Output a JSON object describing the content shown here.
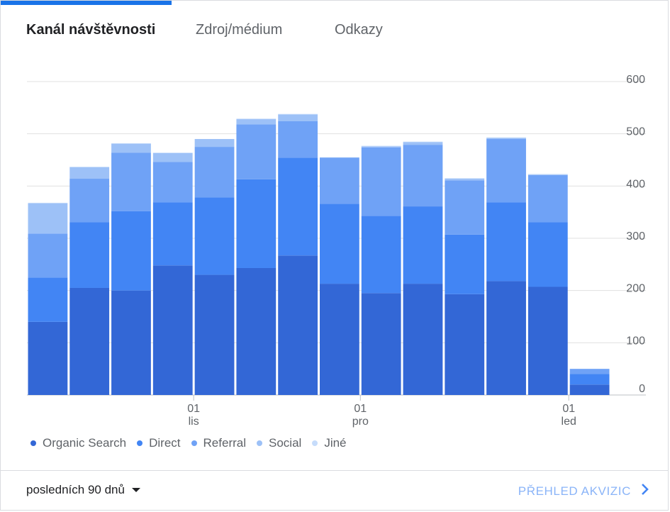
{
  "tabs": [
    {
      "label": "Kanál návštěvnosti"
    },
    {
      "label": "Zdroj/médium"
    },
    {
      "label": "Odkazy"
    }
  ],
  "legend": [
    {
      "label": "Organic Search",
      "color": "#3367d6"
    },
    {
      "label": "Direct",
      "color": "#4285f4"
    },
    {
      "label": "Referral",
      "color": "#6fa2f6"
    },
    {
      "label": "Social",
      "color": "#9dc1f7"
    },
    {
      "label": "Jiné",
      "color": "#c6dcfb"
    }
  ],
  "footer": {
    "date_range": "posledních 90 dnů",
    "acquisition_link": "PŘEHLED AKVIZIC"
  },
  "chart_data": {
    "type": "bar",
    "stacked": true,
    "ylim": [
      0,
      600
    ],
    "yticks": [
      0,
      100,
      200,
      300,
      400,
      500,
      600
    ],
    "x_ticks": [
      {
        "day": "01",
        "month": "lis",
        "after_bar": 4
      },
      {
        "day": "01",
        "month": "pro",
        "after_bar": 8
      },
      {
        "day": "01",
        "month": "led",
        "after_bar": 13
      }
    ],
    "series": [
      {
        "name": "Organic Search",
        "values": [
          140,
          205,
          200,
          248,
          230,
          243,
          267,
          213,
          195,
          213,
          193,
          218,
          207,
          20
        ]
      },
      {
        "name": "Direct",
        "values": [
          85,
          126,
          152,
          121,
          148,
          170,
          187,
          153,
          148,
          148,
          114,
          151,
          124,
          20
        ]
      },
      {
        "name": "Referral",
        "values": [
          84,
          83,
          112,
          77,
          97,
          105,
          70,
          88,
          131,
          118,
          104,
          121,
          90,
          10
        ]
      },
      {
        "name": "Social",
        "values": [
          58,
          22,
          17,
          17,
          15,
          10,
          13,
          1,
          2,
          5,
          3,
          2,
          1,
          0
        ]
      },
      {
        "name": "Jiné",
        "values": [
          1,
          1,
          1,
          1,
          0,
          1,
          1,
          0,
          1,
          1,
          1,
          1,
          1,
          0
        ]
      }
    ]
  }
}
